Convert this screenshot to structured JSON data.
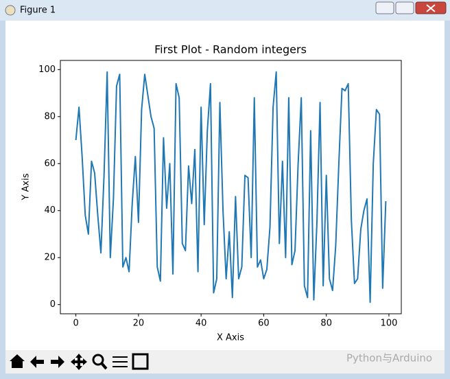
{
  "window": {
    "title": "Figure 1",
    "watermark": "Python与Arduino"
  },
  "chart_data": {
    "type": "line",
    "title": "First Plot - Random integers",
    "x_label": "X Axis",
    "y_label": "Y Axis",
    "x": [
      0,
      1,
      2,
      3,
      4,
      5,
      6,
      7,
      8,
      9,
      10,
      11,
      12,
      13,
      14,
      15,
      16,
      17,
      18,
      19,
      20,
      21,
      22,
      23,
      24,
      25,
      26,
      27,
      28,
      29,
      30,
      31,
      32,
      33,
      34,
      35,
      36,
      37,
      38,
      39,
      40,
      41,
      42,
      43,
      44,
      45,
      46,
      47,
      48,
      49,
      50,
      51,
      52,
      53,
      54,
      55,
      56,
      57,
      58,
      59,
      60,
      61,
      62,
      63,
      64,
      65,
      66,
      67,
      68,
      69,
      70,
      71,
      72,
      73,
      74,
      75,
      76,
      77,
      78,
      79,
      80,
      81,
      82,
      83,
      84,
      85,
      86,
      87,
      88,
      89,
      90,
      91,
      92,
      93,
      94,
      95,
      96,
      97,
      98,
      99
    ],
    "series": [
      {
        "color": "#1f77b4",
        "values": [
          70,
          84,
          63,
          38,
          30,
          61,
          56,
          38,
          22,
          55,
          99,
          20,
          45,
          93,
          98,
          16,
          20,
          14,
          43,
          63,
          35,
          83,
          98,
          89,
          80,
          75,
          16,
          10,
          71,
          41,
          60,
          13,
          94,
          88,
          26,
          23,
          59,
          43,
          66,
          14,
          84,
          34,
          74,
          94,
          5,
          11,
          86,
          40,
          11,
          31,
          3,
          46,
          11,
          16,
          55,
          54,
          20,
          88,
          16,
          19,
          11,
          15,
          33,
          84,
          99,
          26,
          61,
          20,
          88,
          17,
          23,
          60,
          88,
          8,
          3,
          74,
          2,
          35,
          86,
          8,
          55,
          11,
          6,
          25,
          60,
          92,
          91,
          94,
          36,
          9,
          11,
          32,
          40,
          45,
          1,
          60,
          83,
          81,
          7,
          44
        ]
      }
    ],
    "xlim": [
      -4.95,
      103.95
    ],
    "ylim": [
      -3.9,
      103.9
    ],
    "xticks": [
      0,
      20,
      40,
      60,
      80,
      100
    ],
    "yticks": [
      0,
      20,
      40,
      60,
      80,
      100
    ]
  }
}
